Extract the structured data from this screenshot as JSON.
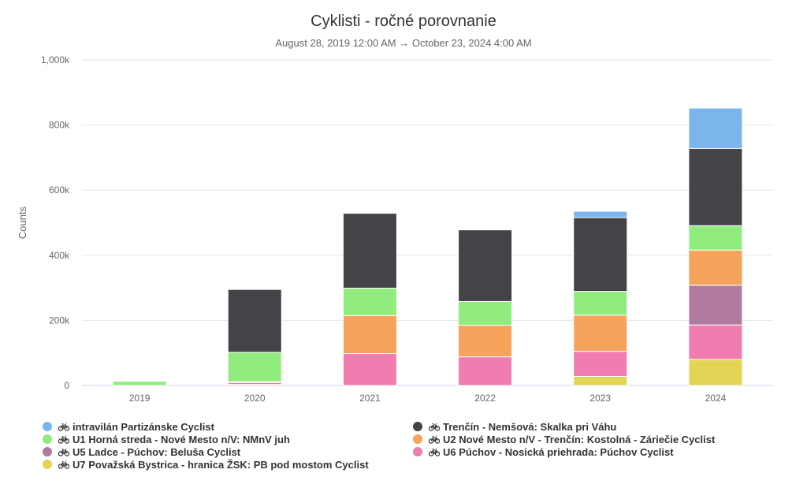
{
  "chart_data": {
    "type": "bar",
    "stacked": true,
    "title": "Cyklisti - ročné porovnanie",
    "subtitle": "August 28, 2019 12:00 AM → October 23, 2024 4:00 AM",
    "xlabel": "",
    "ylabel": "Counts",
    "ylim": [
      0,
      1000000
    ],
    "yticks": [
      0,
      200000,
      400000,
      600000,
      800000,
      1000000
    ],
    "ytick_labels": [
      "0",
      "200k",
      "400k",
      "600k",
      "800k",
      "1,000k"
    ],
    "grid": true,
    "legend_position": "bottom",
    "categories": [
      "2019",
      "2020",
      "2021",
      "2022",
      "2023",
      "2024"
    ],
    "series": [
      {
        "name": "U7 Považská Bystrica - hranica ŽSK: PB pod mostom Cyclist",
        "color": "#e4d354",
        "values": [
          0,
          0,
          0,
          0,
          28000,
          80000
        ]
      },
      {
        "name": "U6 Púchov - Nosická priehrada: Púchov Cyclist",
        "color": "#f17cb0",
        "values": [
          0,
          4000,
          98000,
          88000,
          77000,
          106000
        ]
      },
      {
        "name": "U5 Ladce - Púchov: Beluša Cyclist",
        "color": "#b07aa1",
        "values": [
          0,
          5000,
          0,
          0,
          0,
          122000
        ]
      },
      {
        "name": "U2 Nové Mesto n/V - Trenčín: Kostolná - Záriečie Cyclist",
        "color": "#f7a35c",
        "values": [
          0,
          3000,
          117000,
          97000,
          111000,
          108000
        ]
      },
      {
        "name": "U1 Horná streda - Nové Mesto n/V: NMnV juh",
        "color": "#90ed7d",
        "values": [
          13000,
          90000,
          84000,
          73000,
          73000,
          75000
        ]
      },
      {
        "name": "Trenčín - Nemšová: Skalka pri Váhu",
        "color": "#434348",
        "values": [
          0,
          193000,
          230000,
          220000,
          227000,
          237000
        ]
      },
      {
        "name": "intravilán Partizánske Cyclist",
        "color": "#7cb5ec",
        "values": [
          0,
          0,
          0,
          0,
          19000,
          124000
        ]
      }
    ]
  },
  "legend": [
    {
      "label": "intravilán Partizánske Cyclist",
      "color": "#7cb5ec"
    },
    {
      "label": "Trenčín - Nemšová: Skalka pri Váhu",
      "color": "#434348"
    },
    {
      "label": "U1 Horná streda - Nové Mesto n/V: NMnV juh",
      "color": "#90ed7d"
    },
    {
      "label": "U2 Nové Mesto n/V - Trenčín: Kostolná - Záriečie Cyclist",
      "color": "#f7a35c"
    },
    {
      "label": "U5 Ladce - Púchov: Beluša Cyclist",
      "color": "#b07aa1"
    },
    {
      "label": "U6 Púchov - Nosická priehrada: Púchov Cyclist",
      "color": "#f17cb0"
    },
    {
      "label": "U7 Považská Bystrica - hranica ŽSK: PB pod mostom Cyclist",
      "color": "#e4d354"
    }
  ],
  "legend_icon": "bicycle-icon"
}
